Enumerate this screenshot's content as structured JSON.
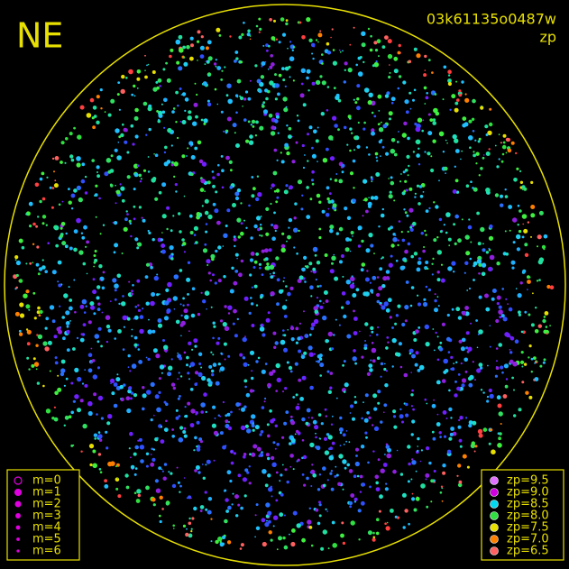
{
  "corner_label": "NE",
  "image_id": "03k61135o0487w",
  "mode": "zp",
  "magnitude_legend": [
    "m=0",
    "m=1",
    "m=2",
    "m=3",
    "m=4",
    "m=5",
    "m=6"
  ],
  "zp_legend": [
    {
      "label": "zp=9.5",
      "color": "#e070ff"
    },
    {
      "label": "zp=9.0",
      "color": "#d000e0"
    },
    {
      "label": "zp=8.5",
      "color": "#00d8f0"
    },
    {
      "label": "zp=8.0",
      "color": "#30e040"
    },
    {
      "label": "zp=7.5",
      "color": "#e8e000"
    },
    {
      "label": "zp=7.0",
      "color": "#ff8000"
    },
    {
      "label": "zp=6.5",
      "color": "#ff6060"
    }
  ]
}
